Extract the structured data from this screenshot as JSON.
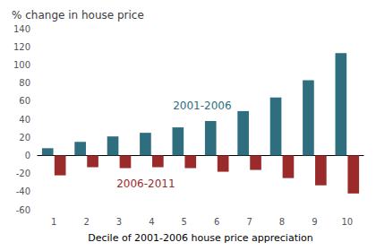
{
  "chart_data": {
    "type": "bar",
    "title": "% change in house price",
    "xlabel": "Decile of 2001-2006 house price appreciation",
    "categories": [
      1,
      2,
      3,
      4,
      5,
      6,
      7,
      8,
      9,
      10
    ],
    "series": [
      {
        "name": "2001-2006",
        "color": "#2e6e7e",
        "values": [
          8,
          15,
          21,
          25,
          31,
          38,
          49,
          64,
          83,
          113
        ]
      },
      {
        "name": "2006-2011",
        "color": "#9b2a2a",
        "values": [
          -22,
          -13,
          -14,
          -13,
          -14,
          -18,
          -16,
          -25,
          -33,
          -42
        ]
      }
    ],
    "ylim": [
      -60,
      140
    ],
    "yticks": [
      -60,
      -40,
      -20,
      0,
      20,
      40,
      60,
      80,
      100,
      120,
      140
    ],
    "grid": false
  }
}
